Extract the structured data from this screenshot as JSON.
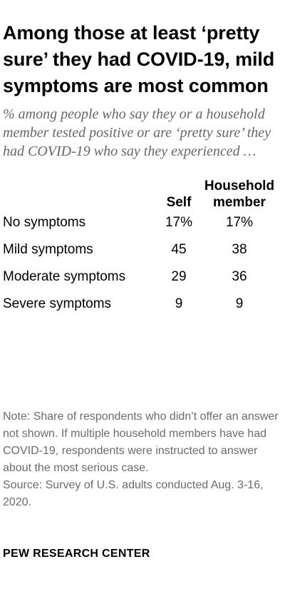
{
  "title": "Among those at least ‘pretty sure’ they had COVID-19, mild symptoms are most common",
  "subtitle": "% among people who say they or a household member tested positive or are ‘pretty sure’ they had COVID-19 who say they experienced …",
  "chart_data": {
    "type": "table",
    "columns": [
      "Self",
      "Household member"
    ],
    "rows": [
      {
        "label": "No symptoms",
        "self": "17%",
        "household": "17%"
      },
      {
        "label": "Mild symptoms",
        "self": "45",
        "household": "38"
      },
      {
        "label": "Moderate symptoms",
        "self": "29",
        "household": "36"
      },
      {
        "label": "Severe symptoms",
        "self": "9",
        "household": "9"
      }
    ],
    "series": [
      {
        "name": "Self",
        "values": [
          17,
          45,
          29,
          9
        ]
      },
      {
        "name": "Household member",
        "values": [
          17,
          38,
          36,
          9
        ]
      }
    ],
    "categories": [
      "No symptoms",
      "Mild symptoms",
      "Moderate symptoms",
      "Severe symptoms"
    ]
  },
  "note": "Note: Share of respondents who didn’t offer an answer not shown. If multiple household members have had COVID-19, respondents were instructed to answer about the most serious case.",
  "source": "Source: Survey of U.S. adults conducted Aug. 3-16, 2020.",
  "brand": "PEW RESEARCH CENTER"
}
